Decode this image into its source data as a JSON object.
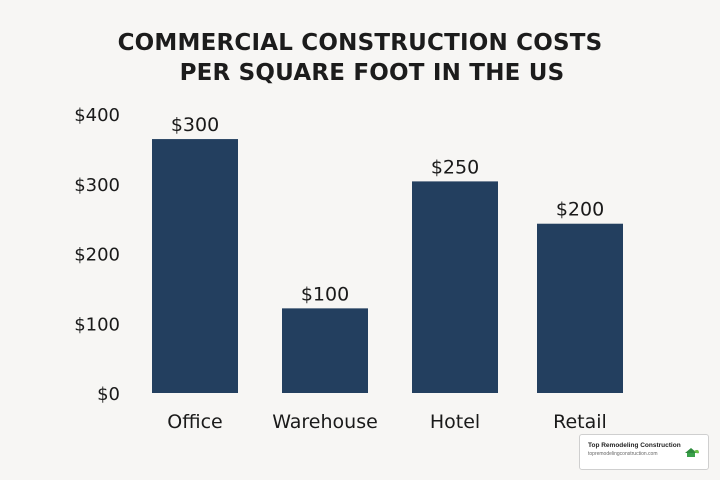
{
  "chart_data": {
    "type": "bar",
    "title_lines": [
      "COMMERCIAL CONSTRUCTION COSTS",
      "PER SQUARE FOOT IN THE US"
    ],
    "categories": [
      "Office",
      "Warehouse",
      "Hotel",
      "Retail"
    ],
    "values": [
      300,
      100,
      250,
      200
    ],
    "data_labels": [
      "$300",
      "$100",
      "$250",
      "$200"
    ],
    "y_ticks": [
      0,
      100,
      200,
      300,
      400
    ],
    "y_tick_labels": [
      "$0",
      "$100",
      "$200",
      "$300",
      "$400"
    ],
    "ylim": [
      0,
      400
    ],
    "xlabel": "",
    "ylabel": "",
    "grid": false,
    "legend": "none",
    "bar_color": "#233f5f"
  },
  "watermark": {
    "name": "Top Remodeling Construction",
    "url": "topremodelingconstruction.com",
    "logo_icon": "house-leaf-logo-icon"
  }
}
